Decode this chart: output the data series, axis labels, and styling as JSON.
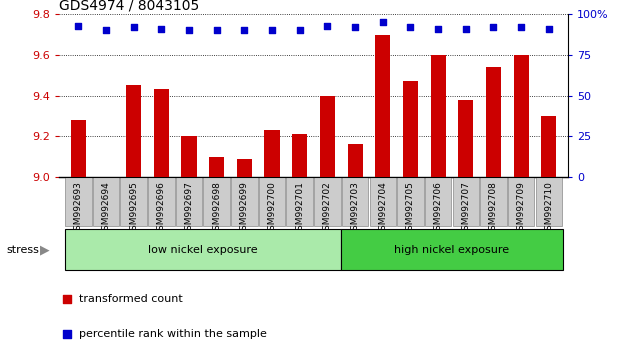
{
  "title": "GDS4974 / 8043105",
  "samples": [
    "GSM992693",
    "GSM992694",
    "GSM992695",
    "GSM992696",
    "GSM992697",
    "GSM992698",
    "GSM992699",
    "GSM992700",
    "GSM992701",
    "GSM992702",
    "GSM992703",
    "GSM992704",
    "GSM992705",
    "GSM992706",
    "GSM992707",
    "GSM992708",
    "GSM992709",
    "GSM992710"
  ],
  "bar_values": [
    9.28,
    9.0,
    9.45,
    9.43,
    9.2,
    9.1,
    9.09,
    9.23,
    9.21,
    9.4,
    9.16,
    9.7,
    9.47,
    9.6,
    9.38,
    9.54,
    9.6,
    9.3
  ],
  "percentile_values": [
    93,
    90,
    92,
    91,
    90,
    90,
    90,
    90,
    90,
    93,
    92,
    95,
    92,
    91,
    91,
    92,
    92,
    91
  ],
  "bar_color": "#cc0000",
  "dot_color": "#0000cc",
  "ylim_left": [
    9.0,
    9.8
  ],
  "ylim_right": [
    0,
    100
  ],
  "yticks_left": [
    9.0,
    9.2,
    9.4,
    9.6,
    9.8
  ],
  "yticks_right": [
    0,
    25,
    50,
    75,
    100
  ],
  "group1_label": "low nickel exposure",
  "group2_label": "high nickel exposure",
  "group1_count": 10,
  "group2_count": 8,
  "stress_label": "stress",
  "legend1": "transformed count",
  "legend2": "percentile rank within the sample",
  "group1_color": "#aaeaaa",
  "group2_color": "#44cc44",
  "xtick_box_color": "#cccccc",
  "xtick_box_edge": "#888888",
  "xlabel_color": "#cc0000",
  "title_fontsize": 10,
  "tick_fontsize": 6.5,
  "bar_width": 0.55
}
